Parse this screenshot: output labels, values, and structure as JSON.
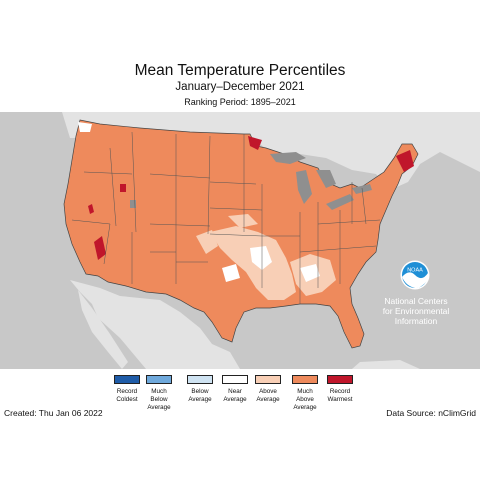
{
  "title": "Mean Temperature Percentiles",
  "subtitle": "January–December 2021",
  "ranking_period": "Ranking Period: 1895–2021",
  "ncei_label": "National Centers for Environmental Information",
  "noaa_logo_text": "NOAA",
  "created": "Created: Thu Jan 06 2022",
  "data_source": "Data Source: nClimGrid",
  "colors": {
    "ocean": "#c8c8c8",
    "other_land": "#e3e3e3",
    "great_lakes": "#8f8f8f",
    "record_coldest": "#1f5ca8",
    "much_below": "#6fa9dc",
    "below": "#cfe3f2",
    "near": "#ffffff",
    "above": "#f8cfb6",
    "much_above": "#ee8a5c",
    "record_warmest": "#c0162b"
  },
  "legend": [
    {
      "label": "Record\nColdest",
      "color": "#1f5ca8"
    },
    {
      "label": "Much\nBelow\nAverage",
      "color": "#6fa9dc"
    },
    {
      "label": "Below\nAverage",
      "color": "#cfe3f2"
    },
    {
      "label": "Near\nAverage",
      "color": "#ffffff"
    },
    {
      "label": "Above\nAverage",
      "color": "#f8cfb6"
    },
    {
      "label": "Much\nAbove\nAverage",
      "color": "#ee8a5c"
    },
    {
      "label": "Record\nWarmest",
      "color": "#c0162b"
    }
  ]
}
